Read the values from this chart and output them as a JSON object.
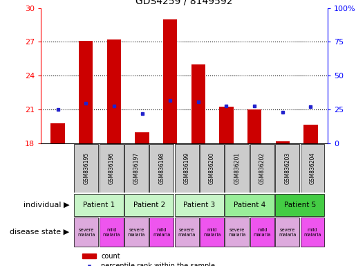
{
  "title": "GDS4259 / 8149592",
  "samples": [
    "GSM836195",
    "GSM836196",
    "GSM836197",
    "GSM836198",
    "GSM836199",
    "GSM836200",
    "GSM836201",
    "GSM836202",
    "GSM836203",
    "GSM836204"
  ],
  "counts": [
    19.8,
    27.1,
    27.2,
    19.0,
    29.0,
    25.0,
    21.3,
    21.0,
    18.2,
    19.7
  ],
  "percentile_ranks": [
    25,
    30,
    28,
    22,
    32,
    31,
    28,
    28,
    23,
    27
  ],
  "ylim_left": [
    18,
    30
  ],
  "ylim_right": [
    0,
    100
  ],
  "yticks_left": [
    18,
    21,
    24,
    27,
    30
  ],
  "yticks_right": [
    0,
    25,
    50,
    75,
    100
  ],
  "patients": [
    {
      "label": "Patient 1",
      "cols": [
        0,
        1
      ],
      "color": "#c8f5c8"
    },
    {
      "label": "Patient 2",
      "cols": [
        2,
        3
      ],
      "color": "#c8f5c8"
    },
    {
      "label": "Patient 3",
      "cols": [
        4,
        5
      ],
      "color": "#c8f5c8"
    },
    {
      "label": "Patient 4",
      "cols": [
        6,
        7
      ],
      "color": "#99ee99"
    },
    {
      "label": "Patient 5",
      "cols": [
        8,
        9
      ],
      "color": "#44cc44"
    }
  ],
  "disease_states": [
    {
      "label": "severe\nmalaria",
      "color": "#ddaadd"
    },
    {
      "label": "mild\nmalaria",
      "color": "#ee55ee"
    },
    {
      "label": "severe\nmalaria",
      "color": "#ddaadd"
    },
    {
      "label": "mild\nmalaria",
      "color": "#ee55ee"
    },
    {
      "label": "severe\nmalaria",
      "color": "#ddaadd"
    },
    {
      "label": "mild\nmalaria",
      "color": "#ee55ee"
    },
    {
      "label": "severe\nmalaria",
      "color": "#ddaadd"
    },
    {
      "label": "mild\nmalaria",
      "color": "#ee55ee"
    },
    {
      "label": "severe\nmalaria",
      "color": "#ddaadd"
    },
    {
      "label": "mild\nmalaria",
      "color": "#ee55ee"
    }
  ],
  "bar_color": "#cc0000",
  "dot_color": "#2222cc",
  "bar_width": 0.5,
  "hline_color": "black",
  "hline_style": "dotted",
  "grid_yticks": [
    21,
    24,
    27
  ],
  "bg_color": "#ffffff",
  "sample_bg_color": "#cccccc",
  "label_individual": "individual",
  "label_disease": "disease state",
  "fig_width": 5.15,
  "fig_height": 3.84,
  "dpi": 100
}
